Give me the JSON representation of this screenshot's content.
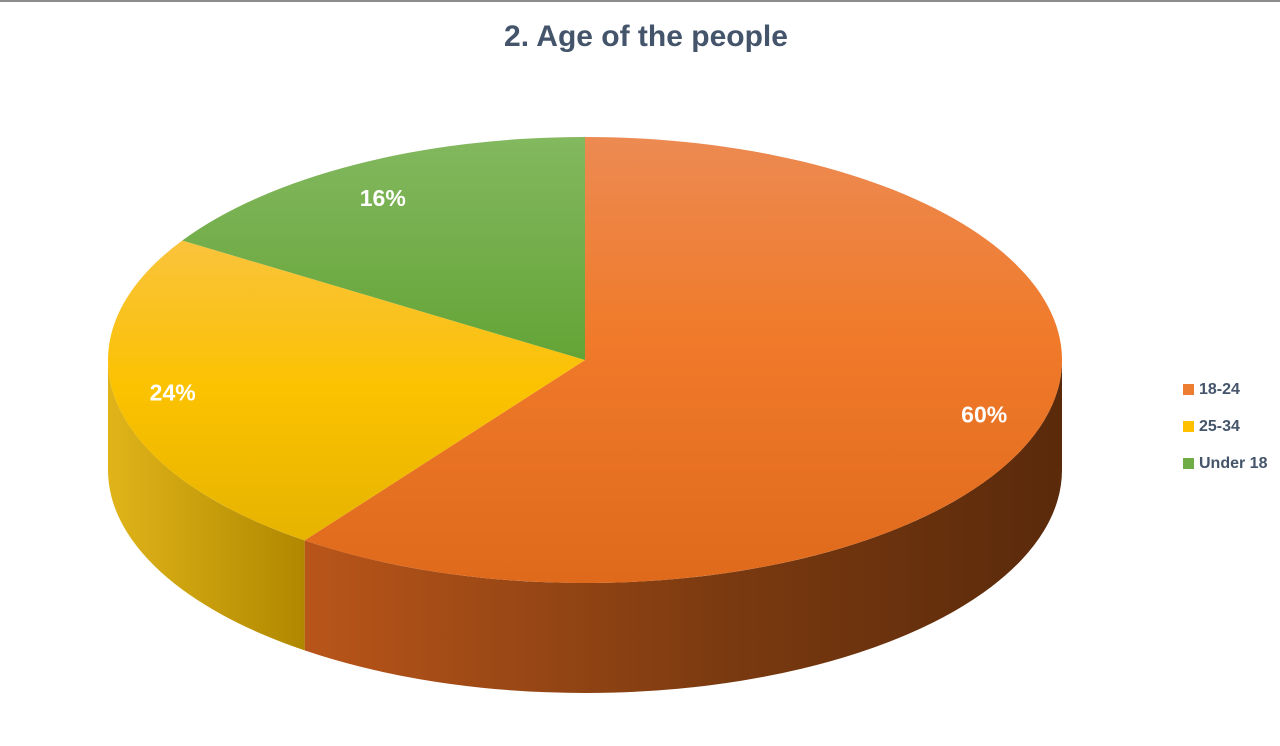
{
  "chart_data": {
    "type": "pie",
    "title": "2. Age of the people",
    "slices": [
      {
        "label": "18-24",
        "value": 60,
        "display": "60%",
        "color": "#ED7D31"
      },
      {
        "label": "25-34",
        "value": 24,
        "display": "24%",
        "color": "#FFC000"
      },
      {
        "label": "Under 18",
        "value": 16,
        "display": "16%",
        "color": "#70AD47"
      }
    ],
    "legend_position": "right",
    "style": "3d"
  }
}
